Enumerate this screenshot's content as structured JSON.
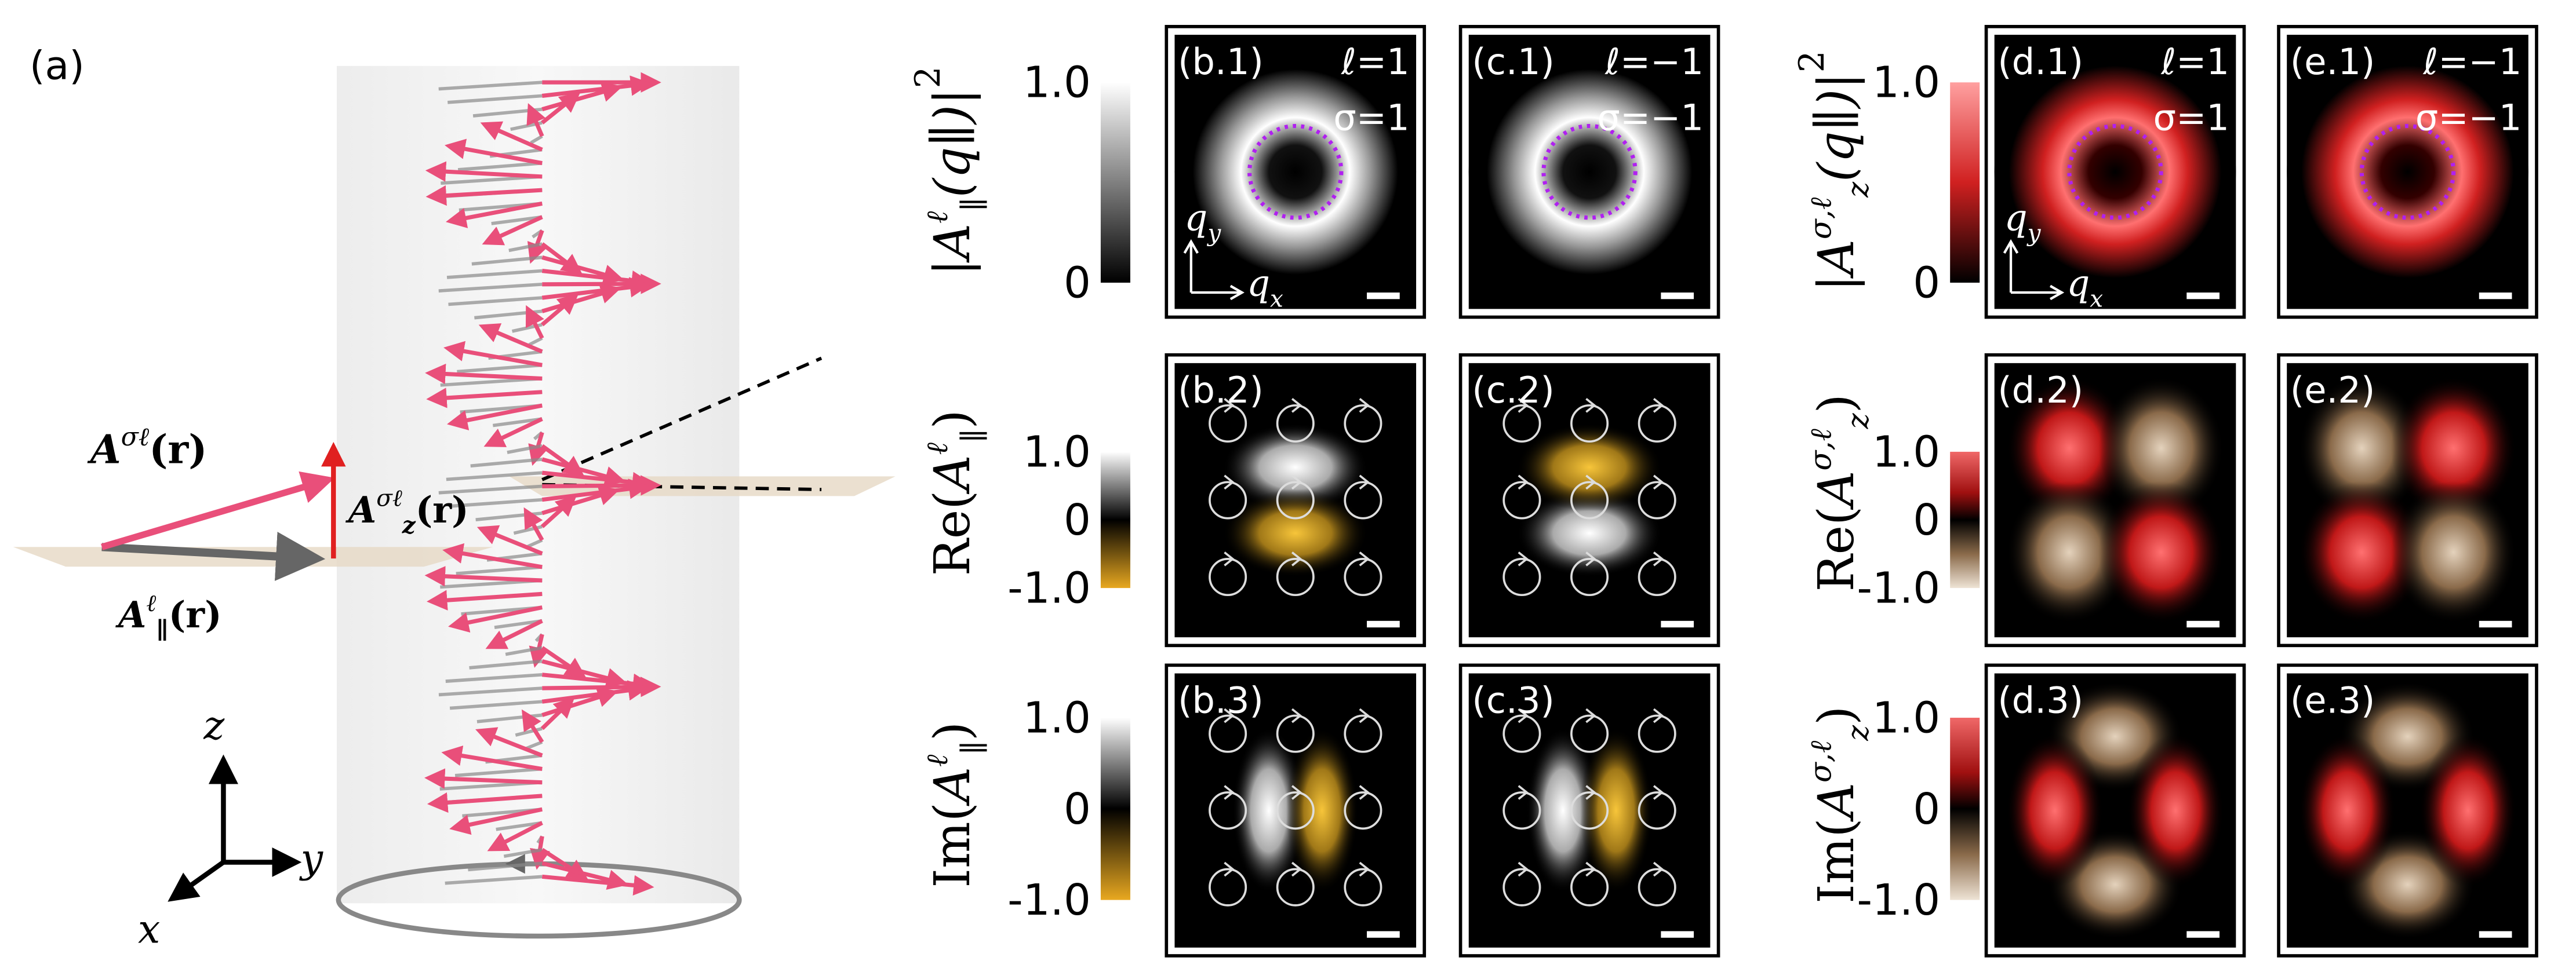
{
  "panel_a": {
    "label": "(a)",
    "total": {
      "symbol": "A",
      "sup": "σℓ",
      "arg": "(r)"
    },
    "longitudinal": {
      "symbol": "A",
      "sub": "z",
      "sup": "σℓ",
      "arg": "(r)"
    },
    "transverse": {
      "symbol": "A",
      "sub": "∥",
      "sup": "ℓ",
      "arg": "(r)"
    },
    "axes": {
      "z": "z",
      "y": "y",
      "x": "x"
    }
  },
  "rows_left": [
    {
      "prefix": "|",
      "symbol": "A",
      "sup": "ℓ",
      "sub": "∥",
      "arg": "(q∥)",
      "suffix": "|",
      "power": "2"
    },
    {
      "prefix": "Re(",
      "symbol": "A",
      "sup": "ℓ",
      "sub": "∥",
      "suffix": ")"
    },
    {
      "prefix": "Im(",
      "symbol": "A",
      "sup": "ℓ",
      "sub": "∥",
      "suffix": ")"
    }
  ],
  "rows_right": [
    {
      "prefix": "|",
      "symbol": "A",
      "sup": "σ,ℓ",
      "sub": "z",
      "arg": "(q∥)",
      "suffix": "|",
      "power": "2"
    },
    {
      "prefix": "Re(",
      "symbol": "A",
      "sup": "σ,ℓ",
      "sub": "z",
      "suffix": ")"
    },
    {
      "prefix": "Im(",
      "symbol": "A",
      "sup": "σ,ℓ",
      "sub": "z",
      "suffix": ")"
    }
  ],
  "colorbars_left": [
    [
      "1.0",
      "0"
    ],
    [
      "1.0",
      "0",
      "-1.0"
    ],
    [
      "1.0",
      "0",
      "-1.0"
    ]
  ],
  "colorbars_right": [
    [
      "1.0",
      "0"
    ],
    [
      "1.0",
      "0",
      "-1.0"
    ],
    [
      "1.0",
      "0",
      "-1.0"
    ]
  ],
  "q_axes": {
    "q": "q",
    "y": "y",
    "x": "x"
  },
  "panels": [
    {
      "label": "(b.1)",
      "ell": "ℓ=1",
      "sigma": "σ=1"
    },
    {
      "label": "(c.1)",
      "ell": "ℓ=−1",
      "sigma": "σ=−1"
    },
    {
      "label": "(d.1)",
      "ell": "ℓ=1",
      "sigma": "σ=1"
    },
    {
      "label": "(e.1)",
      "ell": "ℓ=−1",
      "sigma": "σ=−1"
    },
    {
      "label": "(b.2)"
    },
    {
      "label": "(c.2)"
    },
    {
      "label": "(d.2)"
    },
    {
      "label": "(e.2)"
    },
    {
      "label": "(b.3)"
    },
    {
      "label": "(c.3)"
    },
    {
      "label": "(d.3)"
    },
    {
      "label": "(e.3)"
    }
  ]
}
